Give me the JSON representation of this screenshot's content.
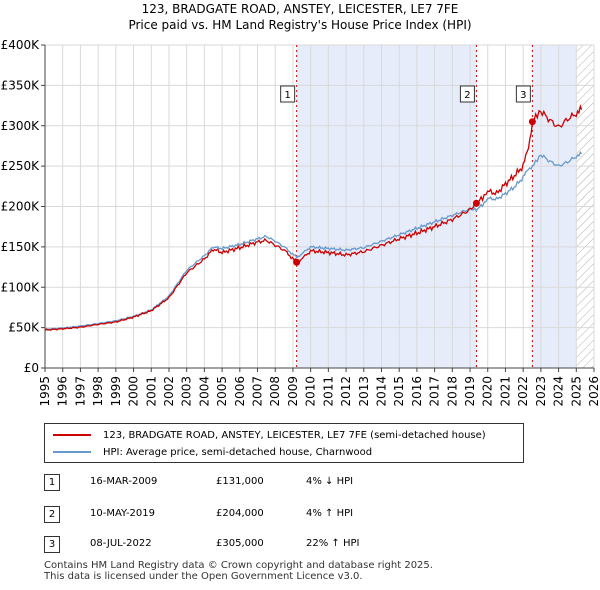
{
  "title": "123, BRADGATE ROAD, ANSTEY, LEICESTER, LE7 7FE",
  "subtitle": "Price paid vs. HM Land Registry's House Price Index (HPI)",
  "colors": {
    "property_line": "#cc0000",
    "hpi_line": "#6699cc",
    "shade": "#e6ecfa",
    "hatch": "#aaaaaa"
  },
  "chart_data": {
    "type": "line",
    "xlim": [
      1995,
      2026
    ],
    "ylim": [
      0,
      400000
    ],
    "x_ticks": [
      "1995",
      "1996",
      "1997",
      "1998",
      "1999",
      "2000",
      "2001",
      "2002",
      "2003",
      "2004",
      "2005",
      "2006",
      "2007",
      "2008",
      "2009",
      "2010",
      "2011",
      "2012",
      "2013",
      "2014",
      "2015",
      "2016",
      "2017",
      "2018",
      "2019",
      "2020",
      "2021",
      "2022",
      "2023",
      "2024",
      "2025",
      "2026"
    ],
    "y_ticks": [
      {
        "value": 0,
        "label": "£0"
      },
      {
        "value": 50000,
        "label": "£50K"
      },
      {
        "value": 100000,
        "label": "£100K"
      },
      {
        "value": 150000,
        "label": "£150K"
      },
      {
        "value": 200000,
        "label": "£200K"
      },
      {
        "value": 250000,
        "label": "£250K"
      },
      {
        "value": 300000,
        "label": "£300K"
      },
      {
        "value": 350000,
        "label": "£350K"
      },
      {
        "value": 400000,
        "label": "£400K"
      }
    ],
    "grid": true,
    "legend_position": "bottom",
    "series": [
      {
        "name": "123, BRADGATE ROAD, ANSTEY, LEICESTER, LE7 7FE (semi-detached house)",
        "color": "#cc0000",
        "x": [
          1995.0,
          1996.0,
          1997.0,
          1998.0,
          1999.0,
          2000.0,
          2001.0,
          2002.0,
          2003.0,
          2004.0,
          2004.5,
          2005.0,
          2006.0,
          2007.0,
          2007.5,
          2008.0,
          2008.5,
          2009.21,
          2009.6,
          2010.0,
          2011.0,
          2012.0,
          2013.0,
          2014.0,
          2015.0,
          2016.0,
          2017.0,
          2018.0,
          2019.0,
          2019.36,
          2019.8,
          2020.0,
          2020.5,
          2021.0,
          2021.5,
          2022.0,
          2022.3,
          2022.52,
          2022.8,
          2023.0,
          2023.5,
          2024.0,
          2024.5,
          2025.0,
          2025.3
        ],
        "y": [
          47000,
          48500,
          50500,
          54000,
          57000,
          63000,
          71000,
          87000,
          118000,
          135000,
          147000,
          143000,
          149000,
          156000,
          158000,
          152000,
          146000,
          131000,
          137000,
          145000,
          143000,
          140000,
          144000,
          152000,
          160000,
          167000,
          175000,
          184000,
          196000,
          204000,
          213000,
          219000,
          216000,
          228000,
          238000,
          250000,
          272000,
          305000,
          314000,
          318000,
          307000,
          298000,
          308000,
          315000,
          320000
        ]
      },
      {
        "name": "HPI: Average price, semi-detached house, Charnwood",
        "color": "#6699cc",
        "x": [
          1995.0,
          1996.0,
          1997.0,
          1998.0,
          1999.0,
          2000.0,
          2001.0,
          2002.0,
          2003.0,
          2004.0,
          2004.5,
          2005.0,
          2006.0,
          2007.0,
          2007.5,
          2008.0,
          2008.5,
          2009.21,
          2009.6,
          2010.0,
          2011.0,
          2012.0,
          2013.0,
          2014.0,
          2015.0,
          2016.0,
          2017.0,
          2018.0,
          2019.0,
          2019.36,
          2019.8,
          2020.0,
          2020.5,
          2021.0,
          2021.5,
          2022.0,
          2022.3,
          2022.52,
          2022.8,
          2023.0,
          2023.5,
          2024.0,
          2024.5,
          2025.0,
          2025.3
        ],
        "y": [
          48000,
          49500,
          52000,
          55000,
          58500,
          64000,
          72000,
          89000,
          121000,
          139000,
          150000,
          148000,
          153000,
          160000,
          163000,
          157000,
          150000,
          137000,
          143000,
          150000,
          148000,
          146000,
          149000,
          157000,
          165000,
          173000,
          181000,
          189000,
          197000,
          196000,
          204000,
          210000,
          209000,
          216000,
          224000,
          236000,
          246000,
          250000,
          258000,
          264000,
          256000,
          250000,
          255000,
          262000,
          265000
        ]
      }
    ],
    "transactions": [
      {
        "label": "1",
        "x": 2009.21,
        "y": 131000
      },
      {
        "label": "2",
        "x": 2019.36,
        "y": 204000
      },
      {
        "label": "3",
        "x": 2022.52,
        "y": 305000
      }
    ],
    "shaded_ranges": [
      [
        2009.21,
        2019.36
      ],
      [
        2022.52,
        2025.0
      ]
    ],
    "hatched_range": [
      2025.0,
      2026.0
    ]
  },
  "legend": {
    "property": "123, BRADGATE ROAD, ANSTEY, LEICESTER, LE7 7FE (semi-detached house)",
    "hpi": "HPI: Average price, semi-detached house, Charnwood"
  },
  "table": [
    {
      "num": "1",
      "date": "16-MAR-2009",
      "price": "£131,000",
      "hpi": "4% ↓ HPI"
    },
    {
      "num": "2",
      "date": "10-MAY-2019",
      "price": "£204,000",
      "hpi": "4% ↑ HPI"
    },
    {
      "num": "3",
      "date": "08-JUL-2022",
      "price": "£305,000",
      "hpi": "22% ↑ HPI"
    }
  ],
  "footer": {
    "line1": "Contains HM Land Registry data © Crown copyright and database right 2025.",
    "line2": "This data is licensed under the Open Government Licence v3.0."
  }
}
